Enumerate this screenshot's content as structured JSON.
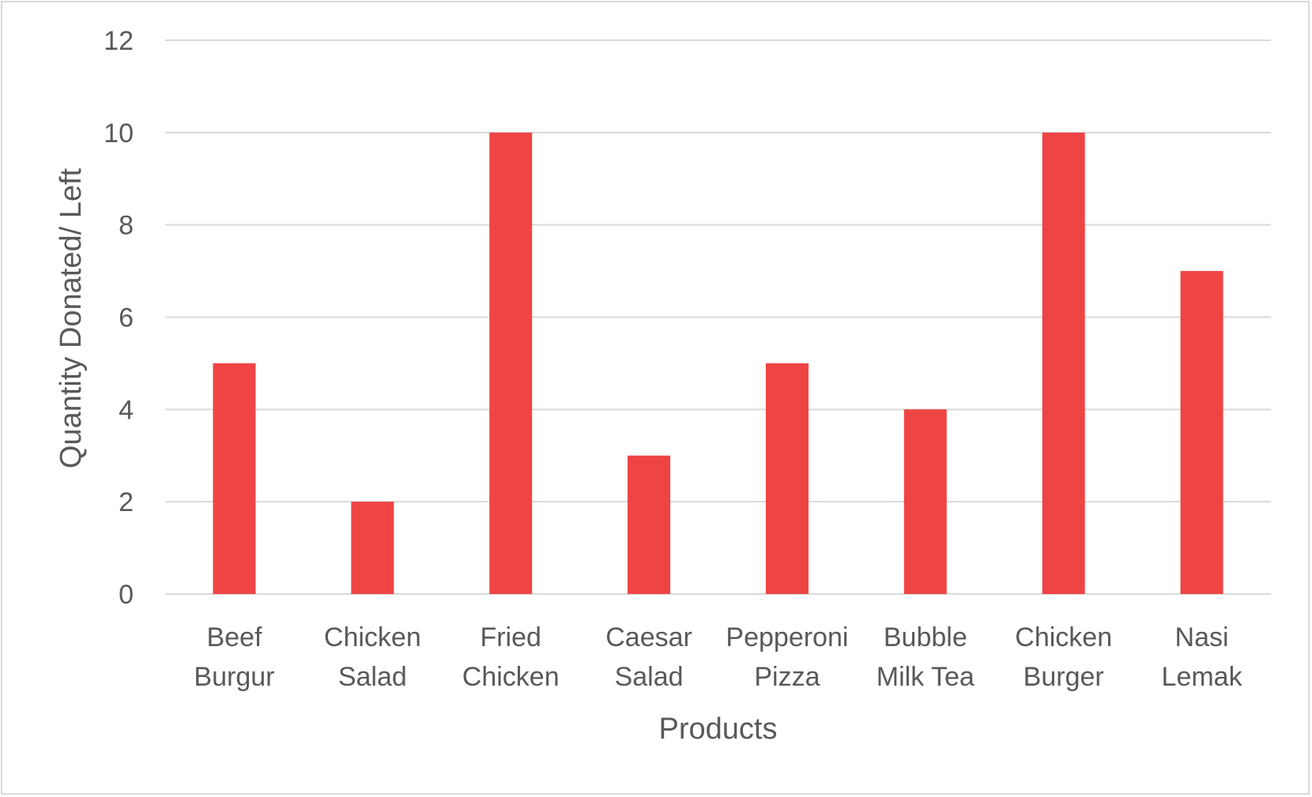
{
  "colors": {
    "bar": "#ef4444",
    "grid": "#d9d9d9",
    "text": "#595959",
    "border": "#d9d9d9"
  },
  "chart_data": {
    "type": "bar",
    "title": "",
    "xlabel": "Products",
    "ylabel": "Quantity Donated/ Left",
    "ylim": [
      0,
      12
    ],
    "yticks": [
      0,
      2,
      4,
      6,
      8,
      10,
      12
    ],
    "grid": true,
    "legend": "none",
    "categories": [
      [
        "Beef",
        "Burgur"
      ],
      [
        "Chicken",
        "Salad"
      ],
      [
        "Fried",
        "Chicken"
      ],
      [
        "Caesar",
        "Salad"
      ],
      [
        "Pepperoni",
        "Pizza"
      ],
      [
        "Bubble",
        "Milk Tea"
      ],
      [
        "Chicken",
        "Burger"
      ],
      [
        "Nasi",
        "Lemak"
      ]
    ],
    "values": [
      5,
      2,
      10,
      3,
      5,
      4,
      10,
      7
    ]
  }
}
